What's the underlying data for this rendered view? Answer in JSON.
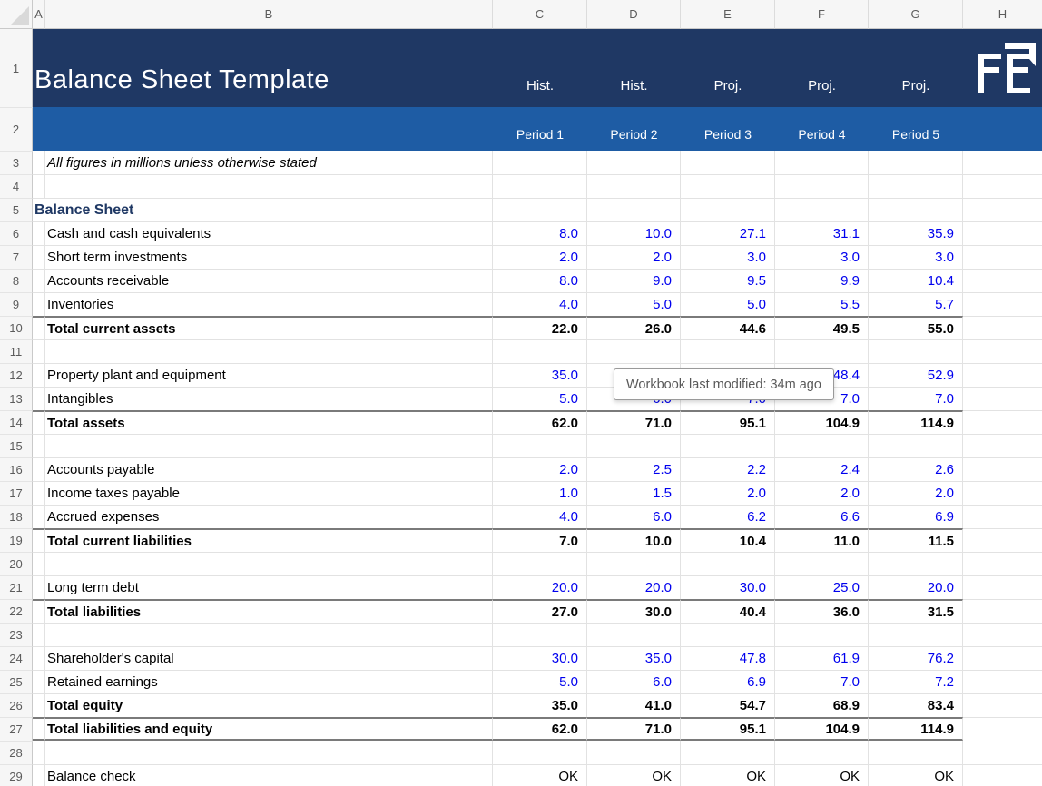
{
  "header": {
    "title": "Balance Sheet Template",
    "scenario_labels": [
      "Hist.",
      "Hist.",
      "Proj.",
      "Proj.",
      "Proj."
    ],
    "period_labels": [
      "Period 1",
      "Period 2",
      "Period 3",
      "Period 4",
      "Period 5"
    ],
    "logo_text": "FE"
  },
  "sheet": {
    "column_letters": [
      "A",
      "B",
      "C",
      "D",
      "E",
      "F",
      "G",
      "H"
    ],
    "rows": [
      {
        "num": "3",
        "label": "All figures in millions unless otherwise stated",
        "style": "note",
        "values": [
          "",
          "",
          "",
          "",
          ""
        ]
      },
      {
        "num": "4",
        "label": "",
        "style": "empty",
        "values": [
          "",
          "",
          "",
          "",
          ""
        ]
      },
      {
        "num": "5",
        "label": "Balance Sheet",
        "style": "section",
        "values": [
          "",
          "",
          "",
          "",
          ""
        ]
      },
      {
        "num": "6",
        "label": "Cash and cash equivalents",
        "style": "input",
        "values": [
          "8.0",
          "10.0",
          "27.1",
          "31.1",
          "35.9"
        ]
      },
      {
        "num": "7",
        "label": "Short term investments",
        "style": "input",
        "values": [
          "2.0",
          "2.0",
          "3.0",
          "3.0",
          "3.0"
        ]
      },
      {
        "num": "8",
        "label": "Accounts receivable",
        "style": "input",
        "values": [
          "8.0",
          "9.0",
          "9.5",
          "9.9",
          "10.4"
        ]
      },
      {
        "num": "9",
        "label": "Inventories",
        "style": "input",
        "values": [
          "4.0",
          "5.0",
          "5.0",
          "5.5",
          "5.7"
        ]
      },
      {
        "num": "10",
        "label": "Total current assets",
        "style": "total",
        "values": [
          "22.0",
          "26.0",
          "44.6",
          "49.5",
          "55.0"
        ]
      },
      {
        "num": "11",
        "label": "",
        "style": "empty",
        "values": [
          "",
          "",
          "",
          "",
          ""
        ]
      },
      {
        "num": "12",
        "label": "Property plant and equipment",
        "style": "input",
        "values": [
          "35.0",
          "",
          "",
          "48.4",
          "52.9"
        ]
      },
      {
        "num": "13",
        "label": "Intangibles",
        "style": "input",
        "values": [
          "5.0",
          "6.0",
          "7.0",
          "7.0",
          "7.0"
        ]
      },
      {
        "num": "14",
        "label": "Total assets",
        "style": "total",
        "values": [
          "62.0",
          "71.0",
          "95.1",
          "104.9",
          "114.9"
        ]
      },
      {
        "num": "15",
        "label": "",
        "style": "empty",
        "values": [
          "",
          "",
          "",
          "",
          ""
        ]
      },
      {
        "num": "16",
        "label": "Accounts payable",
        "style": "input",
        "values": [
          "2.0",
          "2.5",
          "2.2",
          "2.4",
          "2.6"
        ]
      },
      {
        "num": "17",
        "label": "Income taxes payable",
        "style": "input",
        "values": [
          "1.0",
          "1.5",
          "2.0",
          "2.0",
          "2.0"
        ]
      },
      {
        "num": "18",
        "label": "Accrued expenses",
        "style": "input",
        "values": [
          "4.0",
          "6.0",
          "6.2",
          "6.6",
          "6.9"
        ]
      },
      {
        "num": "19",
        "label": "Total current liabilities",
        "style": "total",
        "values": [
          "7.0",
          "10.0",
          "10.4",
          "11.0",
          "11.5"
        ]
      },
      {
        "num": "20",
        "label": "",
        "style": "empty",
        "values": [
          "",
          "",
          "",
          "",
          ""
        ]
      },
      {
        "num": "21",
        "label": "Long term debt",
        "style": "input",
        "values": [
          "20.0",
          "20.0",
          "30.0",
          "25.0",
          "20.0"
        ]
      },
      {
        "num": "22",
        "label": "Total liabilities",
        "style": "total",
        "values": [
          "27.0",
          "30.0",
          "40.4",
          "36.0",
          "31.5"
        ]
      },
      {
        "num": "23",
        "label": "",
        "style": "empty",
        "values": [
          "",
          "",
          "",
          "",
          ""
        ]
      },
      {
        "num": "24",
        "label": "Shareholder's capital",
        "style": "input",
        "values": [
          "30.0",
          "35.0",
          "47.8",
          "61.9",
          "76.2"
        ]
      },
      {
        "num": "25",
        "label": "Retained earnings",
        "style": "input",
        "values": [
          "5.0",
          "6.0",
          "6.9",
          "7.0",
          "7.2"
        ]
      },
      {
        "num": "26",
        "label": "Total equity",
        "style": "bold",
        "values": [
          "35.0",
          "41.0",
          "54.7",
          "68.9",
          "83.4"
        ]
      },
      {
        "num": "27",
        "label": "Total liabilities and equity",
        "style": "grand",
        "values": [
          "62.0",
          "71.0",
          "95.1",
          "104.9",
          "114.9"
        ]
      },
      {
        "num": "28",
        "label": "",
        "style": "empty",
        "values": [
          "",
          "",
          "",
          "",
          ""
        ]
      },
      {
        "num": "29",
        "label": "Balance check",
        "style": "check",
        "values": [
          "OK",
          "OK",
          "OK",
          "OK",
          "OK"
        ]
      }
    ]
  },
  "tooltip": {
    "text": "Workbook last modified: 34m ago"
  },
  "colors": {
    "header_navy": "#1F3864",
    "header_blue": "#1E5CA4",
    "input_blue": "#0000EE",
    "section_navy": "#1F3864",
    "grid": "#E2E2E2",
    "rule": "#7A7A7A",
    "tooltip_text": "#595959"
  }
}
